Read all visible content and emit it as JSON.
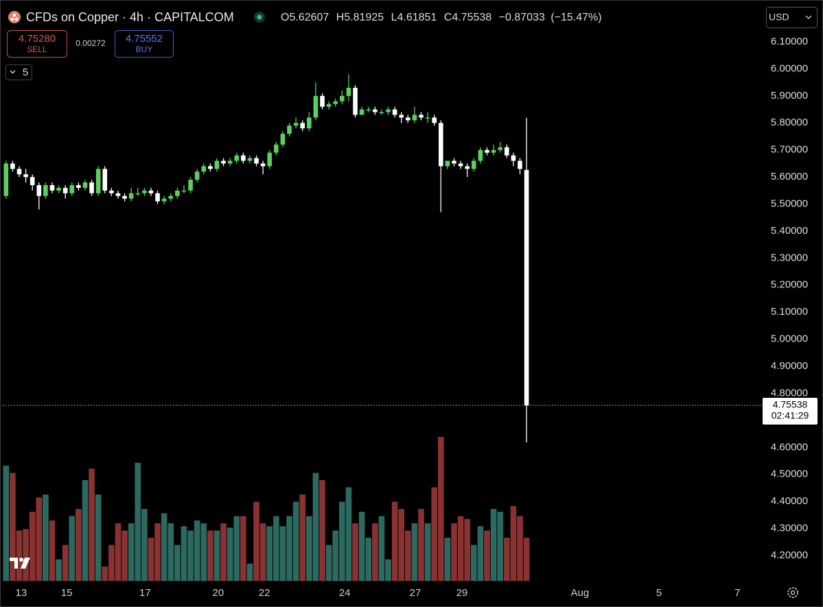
{
  "header": {
    "title": "CFDs on Copper · 4h · CAPITALCOM",
    "ohlc_labels": [
      "O",
      "H",
      "L",
      "C"
    ],
    "change": "−0.87033",
    "change_pct": "(−15.47%)",
    "sell": "4.75280",
    "sell_label": "SELL",
    "spread": "0.00272",
    "buy": "4.75552",
    "buy_label": "BUY",
    "indicators": "5",
    "currency": "USD",
    "countdown": "02:41:29"
  },
  "chart_data": {
    "type": "candlestick",
    "open": [
      5.53,
      5.65,
      5.63,
      5.61,
      5.6,
      5.57,
      5.53,
      5.57,
      5.55,
      5.56,
      5.54,
      5.57,
      5.56,
      5.58,
      5.54,
      5.63,
      5.55,
      5.54,
      5.53,
      5.52,
      5.54,
      5.54,
      5.55,
      5.54,
      5.51,
      5.52,
      5.53,
      5.55,
      5.55,
      5.59,
      5.62,
      5.64,
      5.63,
      5.66,
      5.65,
      5.66,
      5.68,
      5.66,
      5.67,
      5.65,
      5.64,
      5.69,
      5.72,
      5.76,
      5.79,
      5.8,
      5.78,
      5.82,
      5.9,
      5.86,
      5.87,
      5.88,
      5.9,
      5.93,
      5.83,
      5.85,
      5.85,
      5.84,
      5.84,
      5.85,
      5.83,
      5.82,
      5.81,
      5.83,
      5.82,
      5.82,
      5.8,
      5.64,
      5.66,
      5.65,
      5.64,
      5.63,
      5.66,
      5.7,
      5.69,
      5.7,
      5.71,
      5.68,
      5.66,
      5.62607
    ],
    "high": [
      5.66,
      5.66,
      5.64,
      5.63,
      5.61,
      5.58,
      5.58,
      5.58,
      5.57,
      5.57,
      5.58,
      5.58,
      5.59,
      5.59,
      5.64,
      5.64,
      5.56,
      5.55,
      5.54,
      5.56,
      5.56,
      5.56,
      5.56,
      5.55,
      5.53,
      5.54,
      5.56,
      5.57,
      5.6,
      5.63,
      5.65,
      5.65,
      5.67,
      5.67,
      5.67,
      5.69,
      5.69,
      5.68,
      5.68,
      5.66,
      5.7,
      5.73,
      5.77,
      5.8,
      5.82,
      5.81,
      5.84,
      5.95,
      5.91,
      5.88,
      5.89,
      5.92,
      5.98,
      5.94,
      5.86,
      5.86,
      5.86,
      5.85,
      5.86,
      5.86,
      5.84,
      5.83,
      5.86,
      5.84,
      5.84,
      5.83,
      5.81,
      5.66,
      5.67,
      5.66,
      5.65,
      5.67,
      5.71,
      5.71,
      5.72,
      5.73,
      5.72,
      5.69,
      5.67,
      5.81925
    ],
    "low": [
      5.52,
      5.62,
      5.6,
      5.58,
      5.55,
      5.48,
      5.52,
      5.54,
      5.54,
      5.52,
      5.53,
      5.55,
      5.55,
      5.53,
      5.53,
      5.54,
      5.53,
      5.52,
      5.51,
      5.51,
      5.53,
      5.53,
      5.53,
      5.5,
      5.5,
      5.51,
      5.52,
      5.54,
      5.54,
      5.58,
      5.61,
      5.62,
      5.62,
      5.64,
      5.64,
      5.65,
      5.65,
      5.65,
      5.64,
      5.61,
      5.63,
      5.68,
      5.71,
      5.75,
      5.78,
      5.77,
      5.77,
      5.81,
      5.85,
      5.85,
      5.86,
      5.87,
      5.88,
      5.82,
      5.83,
      5.84,
      5.83,
      5.83,
      5.83,
      5.82,
      5.8,
      5.8,
      5.8,
      5.81,
      5.8,
      5.79,
      5.47,
      5.63,
      5.64,
      5.63,
      5.6,
      5.62,
      5.65,
      5.68,
      5.68,
      5.69,
      5.67,
      5.64,
      5.61,
      4.61851
    ],
    "close": [
      5.65,
      5.63,
      5.61,
      5.6,
      5.57,
      5.53,
      5.57,
      5.55,
      5.56,
      5.54,
      5.57,
      5.56,
      5.58,
      5.54,
      5.63,
      5.55,
      5.54,
      5.53,
      5.52,
      5.54,
      5.54,
      5.55,
      5.54,
      5.51,
      5.52,
      5.53,
      5.55,
      5.55,
      5.59,
      5.62,
      5.64,
      5.63,
      5.66,
      5.65,
      5.66,
      5.68,
      5.66,
      5.67,
      5.65,
      5.64,
      5.69,
      5.72,
      5.76,
      5.79,
      5.8,
      5.78,
      5.82,
      5.9,
      5.86,
      5.87,
      5.88,
      5.9,
      5.93,
      5.83,
      5.85,
      5.85,
      5.84,
      5.84,
      5.85,
      5.83,
      5.82,
      5.81,
      5.83,
      5.82,
      5.82,
      5.8,
      5.64,
      5.66,
      5.65,
      5.64,
      5.63,
      5.66,
      5.7,
      5.69,
      5.7,
      5.71,
      5.68,
      5.66,
      5.63,
      4.75538
    ],
    "volume": [
      80,
      75,
      35,
      36,
      48,
      58,
      60,
      42,
      15,
      25,
      45,
      50,
      70,
      78,
      60,
      10,
      25,
      40,
      35,
      40,
      82,
      50,
      30,
      40,
      47,
      40,
      25,
      38,
      35,
      42,
      40,
      35,
      35,
      40,
      37,
      45,
      45,
      12,
      55,
      40,
      38,
      45,
      38,
      45,
      55,
      60,
      45,
      75,
      70,
      25,
      35,
      55,
      65,
      40,
      48,
      30,
      40,
      45,
      15,
      55,
      50,
      35,
      40,
      50,
      40,
      65,
      100,
      30,
      40,
      45,
      43,
      25,
      38,
      35,
      50,
      48,
      30,
      52,
      45,
      30
    ],
    "up_color": "#5ad15e",
    "down_color": "#ffffff",
    "volume_up_color": "#2c6a61",
    "volume_down_color": "#8a3232",
    "xlim": [
      -0.5,
      114.2
    ],
    "xticks": [
      {
        "value": 2.3,
        "label": "13"
      },
      {
        "value": 9.2,
        "label": "15"
      },
      {
        "value": 21.1,
        "label": "17"
      },
      {
        "value": 32.2,
        "label": "20"
      },
      {
        "value": 39.2,
        "label": "22"
      },
      {
        "value": 51.4,
        "label": "24"
      },
      {
        "value": 62.1,
        "label": "27"
      },
      {
        "value": 69.2,
        "label": "29"
      },
      {
        "value": 87.1,
        "label": "Aug"
      },
      {
        "value": 99.1,
        "label": "5"
      },
      {
        "value": 111.0,
        "label": "7"
      }
    ],
    "ylim": [
      4.1035,
      6.2345
    ],
    "yticks": [
      {
        "value": 6.1,
        "label": "6.10000"
      },
      {
        "value": 6.0,
        "label": "6.00000"
      },
      {
        "value": 5.9,
        "label": "5.90000"
      },
      {
        "value": 5.8,
        "label": "5.80000"
      },
      {
        "value": 5.7,
        "label": "5.70000"
      },
      {
        "value": 5.6,
        "label": "5.60000"
      },
      {
        "value": 5.5,
        "label": "5.50000"
      },
      {
        "value": 5.4,
        "label": "5.40000"
      },
      {
        "value": 5.3,
        "label": "5.30000"
      },
      {
        "value": 5.2,
        "label": "5.20000"
      },
      {
        "value": 5.1,
        "label": "5.10000"
      },
      {
        "value": 5.0,
        "label": "5.00000"
      },
      {
        "value": 4.9,
        "label": "4.90000"
      },
      {
        "value": 4.8,
        "label": "4.80000"
      },
      {
        "value": 4.6,
        "label": "4.60000"
      },
      {
        "value": 4.5,
        "label": "4.50000"
      },
      {
        "value": 4.4,
        "label": "4.40000"
      },
      {
        "value": 4.3,
        "label": "4.30000"
      },
      {
        "value": 4.2,
        "label": "4.20000"
      }
    ]
  }
}
